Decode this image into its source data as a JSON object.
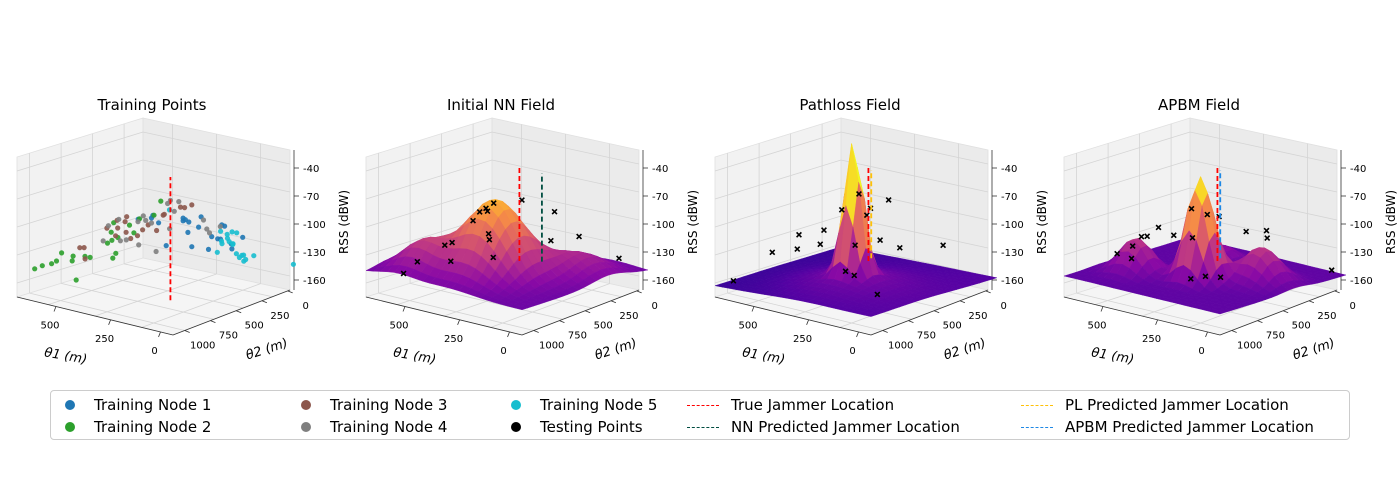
{
  "chart_data": [
    {
      "type": "scatter",
      "title": "Training Points",
      "xlabel": "θ1 (m)",
      "ylabel": "θ2 (m)",
      "zlabel": "RSS (dBW)",
      "x_ticks": [
        "500",
        "250",
        "0"
      ],
      "y_ticks": [
        "1000",
        "750",
        "500",
        "250",
        "0"
      ],
      "z_ticks": [
        "-40",
        "-70",
        "-100",
        "-130",
        "-160"
      ],
      "series": [
        {
          "name": "Training Node 1",
          "color": "#1f77b4",
          "count": 22
        },
        {
          "name": "Training Node 2",
          "color": "#2ca02c",
          "count": 22
        },
        {
          "name": "Training Node 3",
          "color": "#8c564b",
          "count": 20
        },
        {
          "name": "Training Node 4",
          "color": "#7f7f7f",
          "count": 20
        },
        {
          "name": "Training Node 5",
          "color": "#17becf",
          "count": 20
        }
      ]
    },
    {
      "type": "surface",
      "title": "Initial NN Field",
      "xlabel": "θ1 (m)",
      "ylabel": "θ2 (m)",
      "zlabel": "RSS (dBW)",
      "x_ticks": [
        "500",
        "250",
        "0"
      ],
      "y_ticks": [
        "1000",
        "750",
        "500",
        "250",
        "0"
      ],
      "z_ticks": [
        "-40",
        "-70",
        "-100",
        "-130",
        "-160"
      ],
      "colormap": "plasma"
    },
    {
      "type": "surface",
      "title": "Pathloss Field",
      "xlabel": "θ1 (m)",
      "ylabel": "θ2 (m)",
      "zlabel": "RSS (dBW)",
      "x_ticks": [
        "500",
        "250",
        "0"
      ],
      "y_ticks": [
        "1000",
        "750",
        "500",
        "250",
        "0"
      ],
      "z_ticks": [
        "-40",
        "-70",
        "-100",
        "-130",
        "-160"
      ],
      "colormap": "plasma"
    },
    {
      "type": "surface",
      "title": "APBM Field",
      "xlabel": "θ1 (m)",
      "ylabel": "θ2 (m)",
      "zlabel": "RSS (dBW)",
      "x_ticks": [
        "500",
        "250",
        "0"
      ],
      "y_ticks": [
        "1000",
        "750",
        "500",
        "250",
        "0"
      ],
      "z_ticks": [
        "-40",
        "-70",
        "-100",
        "-130",
        "-160"
      ],
      "colormap": "plasma"
    }
  ],
  "legend": {
    "placement": "bottom",
    "items": [
      {
        "label": "Training Node 1",
        "kind": "dot",
        "color": "#1f77b4"
      },
      {
        "label": "Training Node 2",
        "kind": "dot",
        "color": "#2ca02c"
      },
      {
        "label": "Training Node 3",
        "kind": "dot",
        "color": "#8c564b"
      },
      {
        "label": "Training Node 4",
        "kind": "dot",
        "color": "#7f7f7f"
      },
      {
        "label": "Training Node 5",
        "kind": "dot",
        "color": "#17becf"
      },
      {
        "label": "Testing Points",
        "kind": "dot",
        "color": "#000000"
      },
      {
        "label": "True Jammer Location",
        "kind": "dash",
        "color": "#ff0000"
      },
      {
        "label": "NN Predicted Jammer Location",
        "kind": "dash",
        "color": "#004d40"
      },
      {
        "label": "PL Predicted Jammer Location",
        "kind": "dash",
        "color": "#ffc107"
      },
      {
        "label": "APBM Predicted Jammer Location",
        "kind": "dash",
        "color": "#1e88e5"
      }
    ]
  }
}
